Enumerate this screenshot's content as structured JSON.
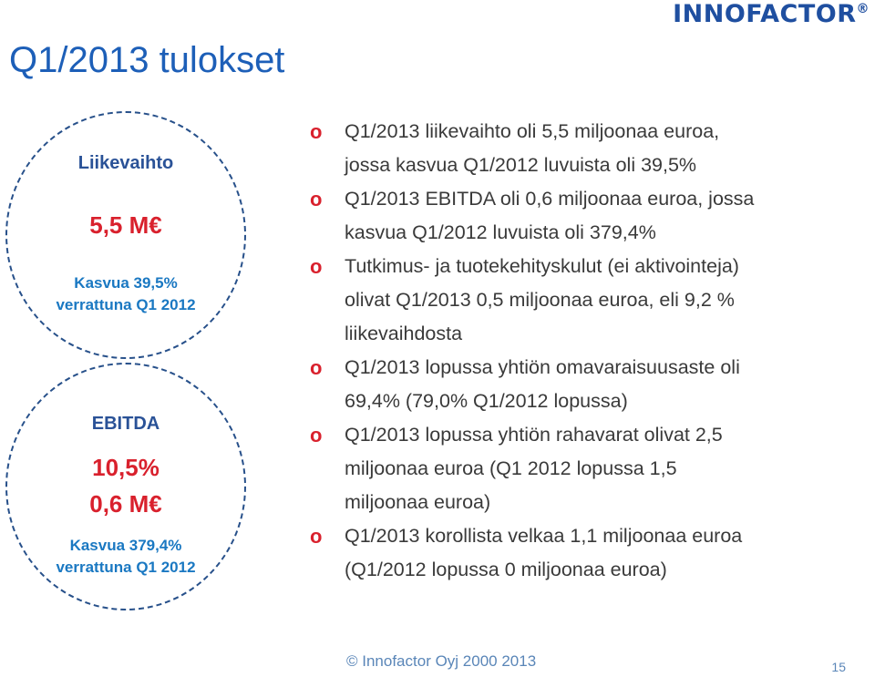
{
  "logo": {
    "text": "INNOFACTOR",
    "reg": "®"
  },
  "title": "Q1/2013 tulokset",
  "revenue": {
    "label": "Liikevaihto",
    "value": "5,5 M€",
    "growth_line1": "Kasvua 39,5%",
    "growth_line2": "verrattuna Q1 2012"
  },
  "ebitda": {
    "label": "EBITDA",
    "percent": "10,5%",
    "value": "0,6 M€",
    "growth_line1": "Kasvua 379,4%",
    "growth_line2": "verrattuna Q1 2012"
  },
  "bullet_marker": "o",
  "bullets": [
    {
      "line1": "Q1/2013 liikevaihto oli 5,5 miljoonaa euroa,",
      "line2": "jossa kasvua Q1/2012 luvuista oli 39,5%"
    },
    {
      "line1": "Q1/2013 EBITDA oli 0,6 miljoonaa euroa, jossa",
      "line2": "kasvua Q1/2012 luvuista oli 379,4%"
    },
    {
      "line1": "Tutkimus- ja tuotekehityskulut (ei aktivointeja)",
      "line2": "olivat Q1/2013 0,5 miljoonaa euroa, eli 9,2 %",
      "line3": "liikevaihdosta"
    },
    {
      "line1": "Q1/2013 lopussa yhtiön omavaraisuusaste oli",
      "line2": "69,4% (79,0% Q1/2012 lopussa)"
    },
    {
      "line1": "Q1/2013 lopussa yhtiön rahavarat olivat 2,5",
      "line2": "miljoonaa euroa (Q1 2012 lopussa 1,5",
      "line3": "miljoonaa euroa)"
    },
    {
      "line1": "Q1/2013 korollista velkaa 1,1 miljoonaa euroa",
      "line2": "(Q1/2012 lopussa 0 miljoonaa euroa)"
    }
  ],
  "footer": "© Innofactor Oyj 2000 2013",
  "page_number": "15"
}
